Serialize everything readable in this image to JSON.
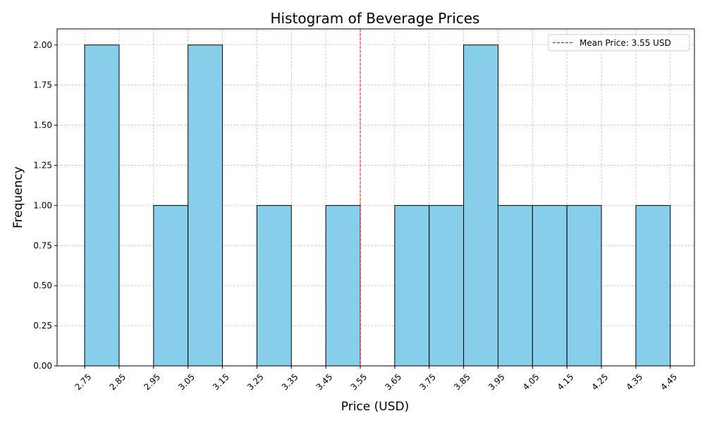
{
  "chart_data": {
    "type": "bar",
    "title": "Histogram of Beverage Prices",
    "xlabel": "Price (USD)",
    "ylabel": "Frequency",
    "bin_edges": [
      2.75,
      2.85,
      2.95,
      3.05,
      3.15,
      3.25,
      3.35,
      3.45,
      3.55,
      3.65,
      3.75,
      3.85,
      3.95,
      4.05,
      4.15,
      4.25,
      4.35,
      4.45
    ],
    "values": [
      2,
      0,
      1,
      2,
      0,
      1,
      0,
      1,
      0,
      1,
      1,
      2,
      1,
      1,
      1,
      0,
      1
    ],
    "xticks": [
      "2.75",
      "2.85",
      "2.95",
      "3.05",
      "3.15",
      "3.25",
      "3.35",
      "3.45",
      "3.55",
      "3.65",
      "3.75",
      "3.85",
      "3.95",
      "4.05",
      "4.15",
      "4.25",
      "4.35",
      "4.45"
    ],
    "yticks": [
      "0.00",
      "0.25",
      "0.50",
      "0.75",
      "1.00",
      "1.25",
      "1.50",
      "1.75",
      "2.00"
    ],
    "xlim": [
      2.67,
      4.52
    ],
    "ylim": [
      0,
      2.1
    ],
    "mean_line": {
      "value": 3.55,
      "label": "Mean Price: 3.55 USD"
    },
    "bar_color": "#87ceeb",
    "bar_edge_color": "#000000",
    "mean_line_color": "#ff0000",
    "grid": true,
    "legend_position": "top-right"
  }
}
